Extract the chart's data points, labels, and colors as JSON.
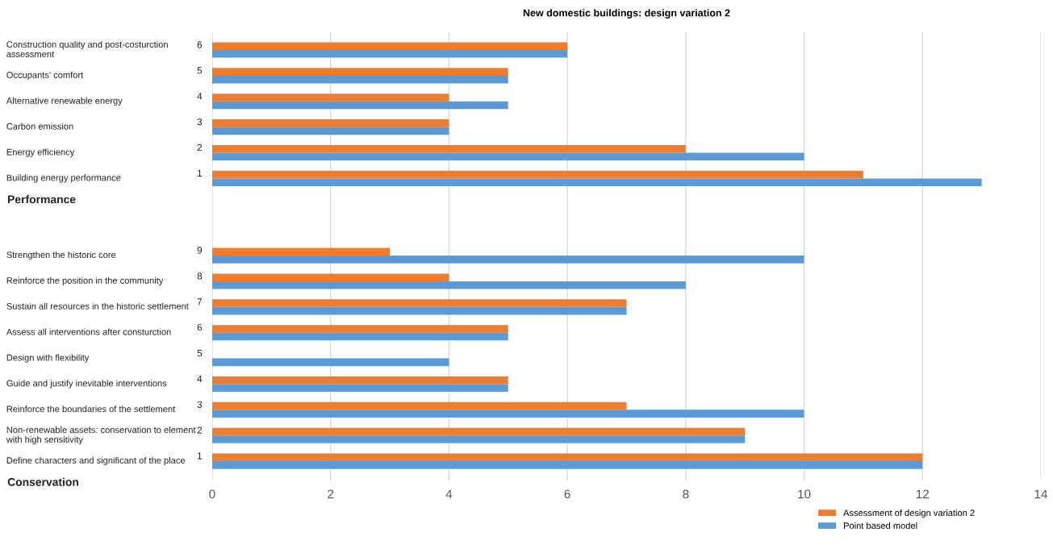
{
  "chart_data": {
    "type": "bar",
    "orientation": "horizontal",
    "title": "New domestic buildings: design variation 2",
    "categories": [
      "Construction quality and post-costurction\nassessment",
      "Occupants' comfort",
      "Alternative renewable energy",
      "Carbon emission",
      "Energy efficiency",
      "Building energy performance",
      null,
      null,
      "Strengthen the historic core",
      "Reinforce the position in the community",
      "Sustain all resources in the historic settlement",
      "Assess all interventions after consturction",
      "Design with flexibility",
      "Guide and justify inevitable interventions",
      "Reinforce the boundaries of the settlement",
      "Non-renewable assets: conservation to element\nwith high sensitivity",
      "Define characters and significant of the place"
    ],
    "series": [
      {
        "name": "Assessment of design variation 2",
        "color": "#ed7d31",
        "values": [
          6,
          5,
          4,
          4,
          8,
          11,
          null,
          null,
          3,
          4,
          7,
          5,
          null,
          5,
          7,
          9,
          12
        ]
      },
      {
        "name": "Point based model",
        "color": "#5b9bd5",
        "values": [
          6,
          5,
          5,
          4,
          10,
          13,
          null,
          null,
          10,
          8,
          7,
          5,
          4,
          5,
          10,
          9,
          12
        ]
      }
    ],
    "annotations": [
      "6",
      "5",
      "4",
      "3",
      "2",
      "1",
      "Performance",
      "9",
      "8",
      "7",
      "6",
      "5",
      "4",
      "3",
      "2",
      "1",
      "Conservation"
    ],
    "xlim": [
      0,
      14
    ],
    "xticks": [
      0,
      2,
      4,
      6,
      8,
      10,
      12,
      14
    ],
    "grid": "x",
    "legend": "bottom right"
  }
}
